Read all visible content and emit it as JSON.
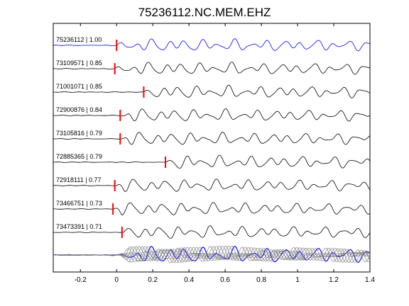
{
  "chart_data": {
    "type": "line",
    "title": "75236112.NC.MEM.EHZ",
    "xlabel": "",
    "ylabel": "",
    "xlim": [
      -0.35,
      1.4
    ],
    "xticks": [
      "-0.2",
      "0",
      "0.2",
      "0.4",
      "0.6",
      "0.8",
      "1",
      "1.2",
      "1.4"
    ],
    "xtick_values": [
      -0.2,
      0,
      0.2,
      0.4,
      0.6,
      0.8,
      1.0,
      1.2,
      1.4
    ],
    "grid": false,
    "legend": "none",
    "colors": {
      "reference": "#0000ff",
      "trace": "#000000",
      "stack": "#808080",
      "pick": "#ff0000"
    },
    "series": [
      {
        "label": "75236112 | 1.00",
        "pick_time": 0.0,
        "reference": true
      },
      {
        "label": "73109571 | 0.85",
        "pick_time": -0.01,
        "reference": false
      },
      {
        "label": "71001071 | 0.85",
        "pick_time": 0.15,
        "reference": false
      },
      {
        "label": "72900876 | 0.84",
        "pick_time": 0.02,
        "reference": false
      },
      {
        "label": "73105816 | 0.79",
        "pick_time": 0.02,
        "reference": false
      },
      {
        "label": "72885365 | 0.79",
        "pick_time": 0.27,
        "reference": false
      },
      {
        "label": "72918111 | 0.77",
        "pick_time": -0.01,
        "reference": false
      },
      {
        "label": "73466751 | 0.73",
        "pick_time": -0.02,
        "reference": false
      },
      {
        "label": "73473391 | 0.71",
        "pick_time": 0.03,
        "reference": false
      }
    ]
  }
}
